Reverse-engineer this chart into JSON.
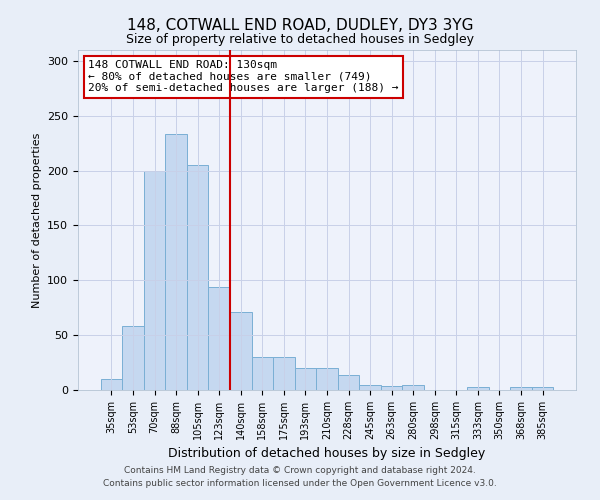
{
  "title": "148, COTWALL END ROAD, DUDLEY, DY3 3YG",
  "subtitle": "Size of property relative to detached houses in Sedgley",
  "xlabel": "Distribution of detached houses by size in Sedgley",
  "ylabel": "Number of detached properties",
  "bar_labels": [
    "35sqm",
    "53sqm",
    "70sqm",
    "88sqm",
    "105sqm",
    "123sqm",
    "140sqm",
    "158sqm",
    "175sqm",
    "193sqm",
    "210sqm",
    "228sqm",
    "245sqm",
    "263sqm",
    "280sqm",
    "298sqm",
    "315sqm",
    "333sqm",
    "350sqm",
    "368sqm",
    "385sqm"
  ],
  "bar_values": [
    10,
    58,
    200,
    233,
    205,
    94,
    71,
    30,
    30,
    20,
    20,
    14,
    5,
    4,
    5,
    0,
    0,
    3,
    0,
    3,
    3
  ],
  "bar_color": "#c5d8f0",
  "bar_edge_color": "#7aafd4",
  "vline_x": 6,
  "vline_color": "#cc0000",
  "ylim": [
    0,
    310
  ],
  "yticks": [
    0,
    50,
    100,
    150,
    200,
    250,
    300
  ],
  "annotation_text": "148 COTWALL END ROAD: 130sqm\n← 80% of detached houses are smaller (749)\n20% of semi-detached houses are larger (188) →",
  "annotation_box_color": "#ffffff",
  "annotation_box_edge": "#cc0000",
  "footer_line1": "Contains HM Land Registry data © Crown copyright and database right 2024.",
  "footer_line2": "Contains public sector information licensed under the Open Government Licence v3.0.",
  "bg_color": "#e8eef8",
  "plot_bg_color": "#eef2fb",
  "grid_color": "#c8d0e8"
}
